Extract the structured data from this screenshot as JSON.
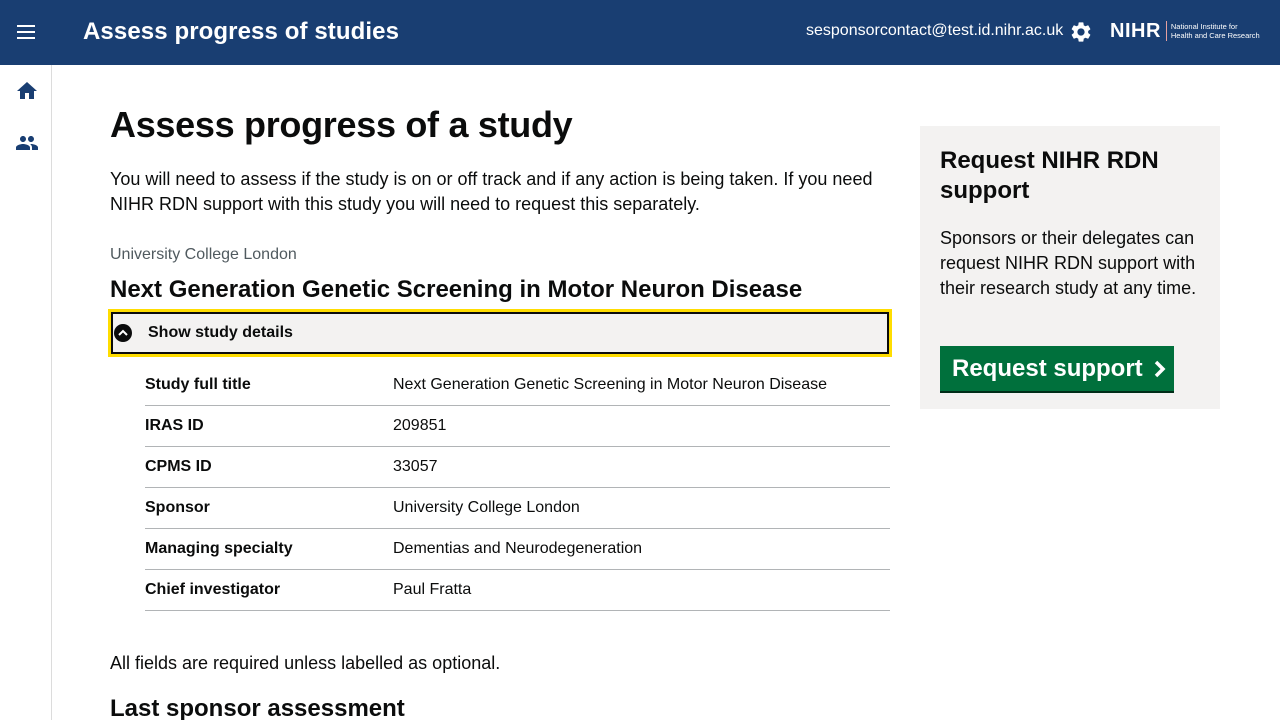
{
  "header": {
    "title": "Assess progress of studies",
    "user_email": "sesponsorcontact@test.id.nihr.ac.uk",
    "logo_word": "NIHR",
    "logo_sub_line1": "National Institute for",
    "logo_sub_line2": "Health and Care Research",
    "menu_icon": "hamburger-menu-icon",
    "settings_icon": "gear-icon"
  },
  "side_nav": {
    "items": [
      {
        "icon": "home-icon"
      },
      {
        "icon": "people-icon"
      }
    ]
  },
  "main": {
    "title": "Assess progress of a study",
    "intro": "You will need to assess if the study is on or off track and if any action is being taken. If you need NIHR RDN support with this study you will need to request this separately.",
    "caption": "University College London",
    "study_title": "Next Generation Genetic Screening in Motor Neuron Disease",
    "details_toggle_label": "Show study details",
    "summary": [
      {
        "key": "Study full title",
        "value": "Next Generation Genetic Screening in Motor Neuron Disease"
      },
      {
        "key": "IRAS ID",
        "value": "209851"
      },
      {
        "key": "CPMS ID",
        "value": "33057"
      },
      {
        "key": "Sponsor",
        "value": "University College London"
      },
      {
        "key": "Managing specialty",
        "value": "Dementias and Neurodegeneration"
      },
      {
        "key": "Chief investigator",
        "value": "Paul Fratta"
      }
    ],
    "required_note": "All fields are required unless labelled as optional.",
    "section_heading": "Last sponsor assessment"
  },
  "aside": {
    "title": "Request NIHR RDN support",
    "body": "Sponsors or their delegates can request NIHR RDN support with their research study at any time.",
    "button_label": "Request support"
  },
  "colors": {
    "header_bg": "#193e72",
    "focus_yellow": "#ffdd00",
    "button_green": "#00703c",
    "panel_grey": "#f3f2f1"
  }
}
